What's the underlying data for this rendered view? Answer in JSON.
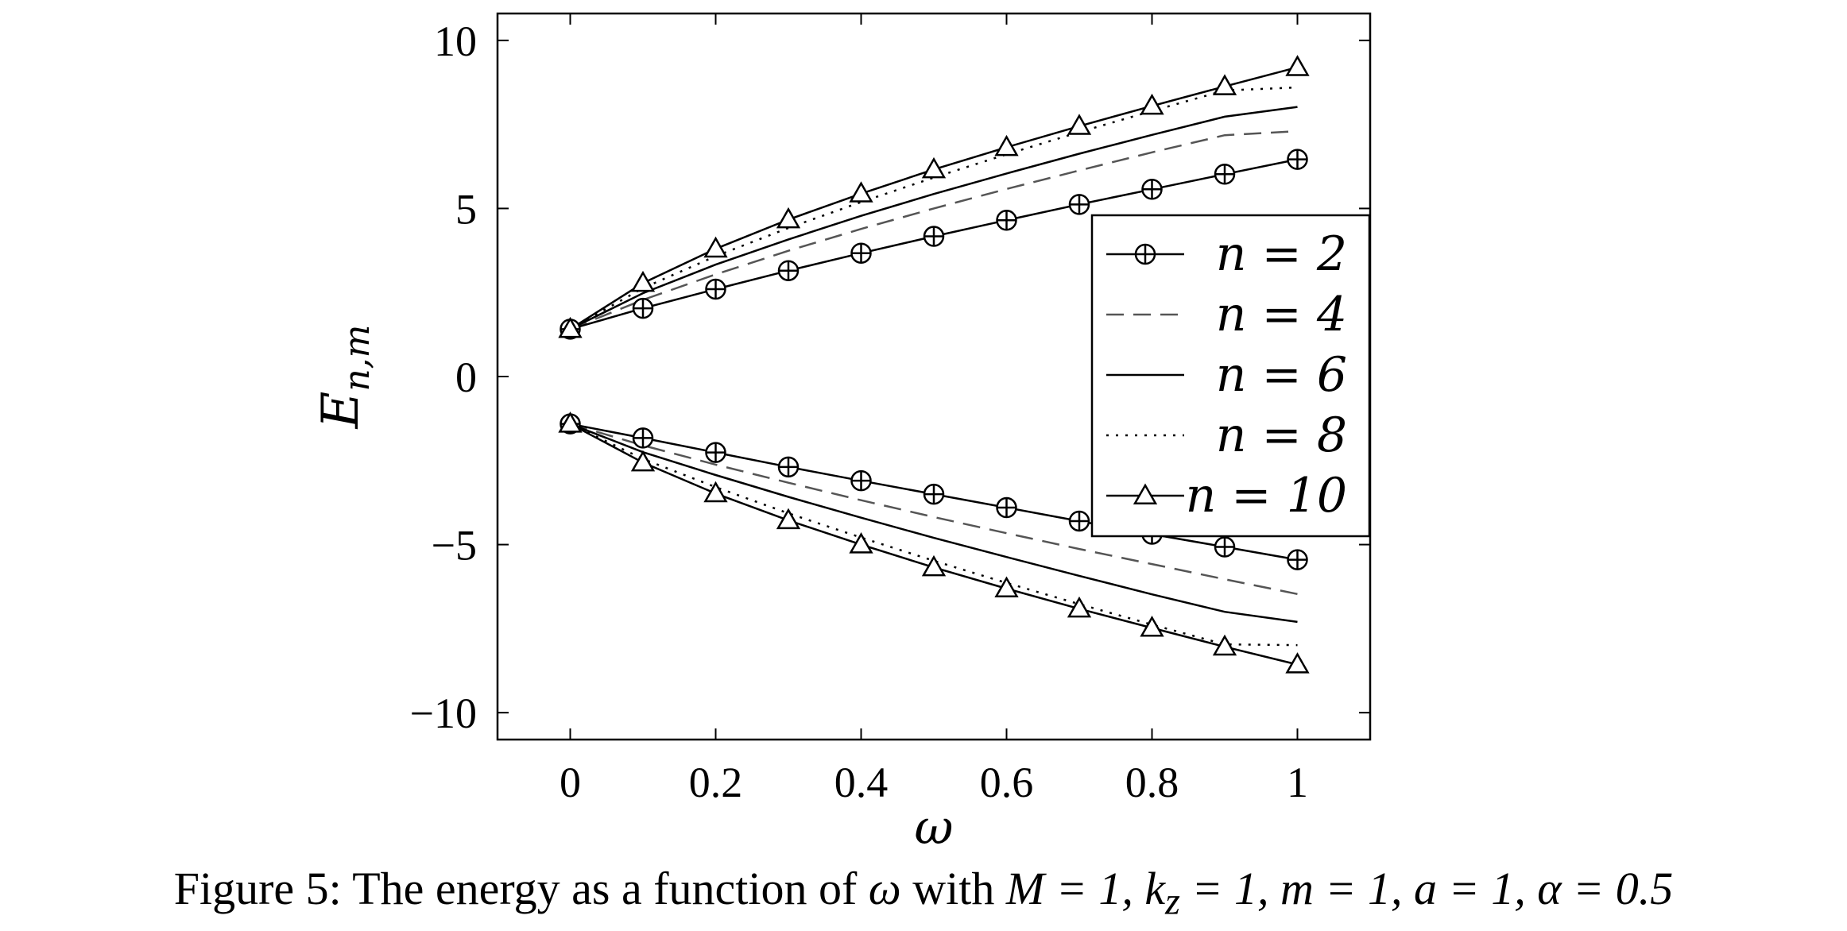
{
  "chart_data": {
    "type": "line",
    "title": "",
    "xlabel": "ω",
    "ylabel": "E",
    "ylabel_subscript": "n,m",
    "xlim": [
      -0.1,
      1.1
    ],
    "ylim": [
      -10.8,
      10.8
    ],
    "x_ticks": [
      0,
      0.2,
      0.4,
      0.6,
      0.8,
      1
    ],
    "x_tick_labels": [
      "0",
      "0.2",
      "0.4",
      "0.6",
      "0.8",
      "1"
    ],
    "y_ticks": [
      -10,
      -5,
      0,
      5,
      10
    ],
    "y_tick_labels": [
      "−10",
      "−5",
      "0",
      "5",
      "10"
    ],
    "grid": false,
    "legend_position": "right",
    "x": [
      0,
      0.1,
      0.2,
      0.3,
      0.4,
      0.5,
      0.6,
      0.7,
      0.8,
      0.9,
      1.0
    ],
    "series": [
      {
        "name": "n = 2",
        "style": "solid",
        "marker": "circle-plus",
        "upper": [
          1.41,
          2.03,
          2.6,
          3.15,
          3.67,
          4.17,
          4.65,
          5.12,
          5.57,
          6.02,
          6.46
        ],
        "lower": [
          -1.41,
          -1.83,
          -2.26,
          -2.69,
          -3.1,
          -3.5,
          -3.9,
          -4.3,
          -4.69,
          -5.07,
          -5.45
        ]
      },
      {
        "name": "n = 4",
        "style": "dashed",
        "marker": "none",
        "upper": [
          1.41,
          2.28,
          3.04,
          3.74,
          4.39,
          5.0,
          5.58,
          6.13,
          6.67,
          7.18,
          7.3
        ],
        "lower": [
          -1.41,
          -2.05,
          -2.62,
          -3.16,
          -3.68,
          -4.18,
          -4.66,
          -5.13,
          -5.58,
          -6.03,
          -6.47
        ]
      },
      {
        "name": "n = 6",
        "style": "solid",
        "marker": "none",
        "upper": [
          1.41,
          2.48,
          3.33,
          4.08,
          4.78,
          5.43,
          6.04,
          6.63,
          7.19,
          7.73,
          8.02
        ],
        "lower": [
          -1.41,
          -2.25,
          -2.93,
          -3.58,
          -4.2,
          -4.8,
          -5.37,
          -5.93,
          -6.48,
          -7.0,
          -7.3
        ]
      },
      {
        "name": "n = 8",
        "style": "dotted",
        "marker": "none",
        "upper": [
          1.41,
          2.63,
          3.58,
          4.42,
          5.19,
          5.92,
          6.61,
          7.27,
          7.9,
          8.51,
          8.6
        ],
        "lower": [
          -1.41,
          -2.45,
          -3.29,
          -4.07,
          -4.79,
          -5.48,
          -6.14,
          -6.77,
          -7.38,
          -7.97,
          -7.99
        ]
      },
      {
        "name": "n = 10",
        "style": "solid",
        "marker": "triangle",
        "upper": [
          1.41,
          2.78,
          3.8,
          4.67,
          5.44,
          6.16,
          6.82,
          7.45,
          8.05,
          8.63,
          9.2
        ],
        "lower": [
          -1.41,
          -2.56,
          -3.48,
          -4.28,
          -5.0,
          -5.68,
          -6.31,
          -6.91,
          -7.48,
          -8.04,
          -8.57
        ]
      }
    ]
  },
  "caption": {
    "prefix": "Figure 5: The energy as a function of ",
    "symbol": "ω",
    "middle": " with ",
    "params": "M = 1, k",
    "sub": "z",
    "params_rest": " = 1, m = 1, a = 1, α = 0.5"
  }
}
